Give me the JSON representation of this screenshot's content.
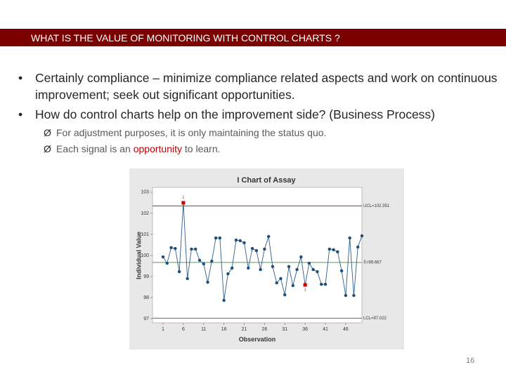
{
  "header": {
    "title": "WHAT IS THE VALUE OF MONITORING WITH CONTROL CHARTS ?"
  },
  "bullets": [
    "Certainly compliance – minimize compliance related aspects and work on continuous improvement; seek out significant opportunities.",
    "How do control charts help on the improvement side? (Business Process)"
  ],
  "sub_bullets": [
    [
      {
        "text": "For adjustment purposes, it is only maintaining the status quo.",
        "color": "#595959"
      }
    ],
    [
      {
        "text": "Each signal is an ",
        "color": "#595959"
      },
      {
        "text": "opportunity",
        "color": "#c00000"
      },
      {
        "text": " to learn.",
        "color": "#595959"
      }
    ]
  ],
  "page_number": "16",
  "chart_data": {
    "type": "line",
    "title": "I Chart of Assay",
    "x_label": "Observation",
    "y_label": "Individual Value",
    "x": [
      1,
      2,
      3,
      4,
      5,
      6,
      7,
      8,
      9,
      10,
      11,
      12,
      13,
      14,
      15,
      16,
      17,
      18,
      19,
      20,
      21,
      22,
      23,
      24,
      25,
      26,
      27,
      28,
      29,
      30,
      31,
      32,
      33,
      34,
      35,
      36,
      37,
      38,
      39,
      40,
      41,
      42,
      43,
      44,
      45,
      46,
      47,
      48,
      49,
      50
    ],
    "series": [
      {
        "name": "Assay",
        "color": "#2d5d8c",
        "values": [
          99.93,
          99.63,
          100.37,
          100.33,
          99.23,
          102.5,
          98.9,
          100.3,
          100.3,
          99.77,
          99.6,
          98.73,
          99.73,
          100.83,
          100.83,
          97.87,
          99.13,
          99.4,
          100.73,
          100.7,
          100.6,
          99.4,
          100.33,
          100.23,
          99.33,
          100.3,
          100.9,
          99.47,
          98.7,
          98.9,
          98.13,
          99.47,
          98.57,
          99.33,
          99.93,
          98.6,
          99.63,
          99.33,
          99.23,
          98.63,
          98.63,
          100.3,
          100.27,
          100.17,
          99.27,
          98.1,
          100.83,
          98.1,
          100.4,
          100.93
        ]
      }
    ],
    "signal_points": [
      5,
      35
    ],
    "signal_color": "#d00000",
    "signal_label": "1",
    "control_limits": [
      {
        "label": "UCL=102.351",
        "value": 102.351,
        "color": "#a52a2a"
      },
      {
        "label": "X̄=99.667",
        "value": 99.667,
        "color": "#3a8a3a"
      },
      {
        "label": "LCL=97.022",
        "value": 97.022,
        "color": "#a52a2a"
      }
    ],
    "xlim": [
      -1.6,
      50
    ],
    "ylim": [
      96.8,
      103.23
    ],
    "xticks": [
      1,
      6,
      11,
      16,
      21,
      26,
      31,
      36,
      41,
      46
    ],
    "yticks": [
      97,
      98,
      99,
      100,
      101,
      102,
      103
    ]
  }
}
